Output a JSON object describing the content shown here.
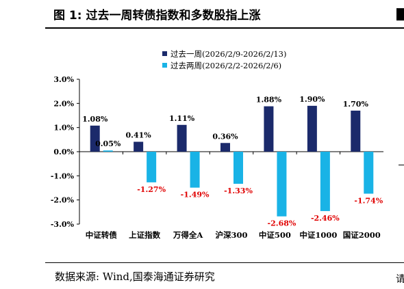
{
  "figure": {
    "title": "图 1:  过去一周转债指数和多数股指上涨",
    "source": "数据来源:  Wind,国泰海通证券研究",
    "edge_text": "请"
  },
  "chart_data": {
    "type": "bar",
    "categories": [
      "中证转债",
      "上证指数",
      "万得全A",
      "沪深300",
      "中证500",
      "中证1000",
      "国证2000"
    ],
    "series": [
      {
        "name": "过去一周(2026/2/9-2026/2/13)",
        "values": [
          1.08,
          0.41,
          1.11,
          0.36,
          1.88,
          1.9,
          1.7
        ],
        "color": "#1b2a6b"
      },
      {
        "name": "过去两周(2026/2/2-2026/2/6)",
        "values": [
          0.05,
          -1.27,
          -1.49,
          -1.33,
          -2.68,
          -2.46,
          -1.74
        ],
        "color": "#19b3e6"
      }
    ],
    "value_labels": [
      [
        "1.08%",
        "0.41%",
        "1.11%",
        "0.36%",
        "1.88%",
        "1.90%",
        "1.70%"
      ],
      [
        "0.05%",
        "-1.27%",
        "-1.49%",
        "-1.33%",
        "-2.68%",
        "-2.46%",
        "-1.74%"
      ]
    ],
    "y_ticks": [
      "3.0%",
      "2.0%",
      "1.0%",
      "0.0%",
      "-1.0%",
      "-2.0%",
      "-3.0%"
    ],
    "ylim": [
      -3.0,
      3.0
    ],
    "negative_label_color": "#e00000",
    "legend_position": "top-center",
    "grid": false
  }
}
